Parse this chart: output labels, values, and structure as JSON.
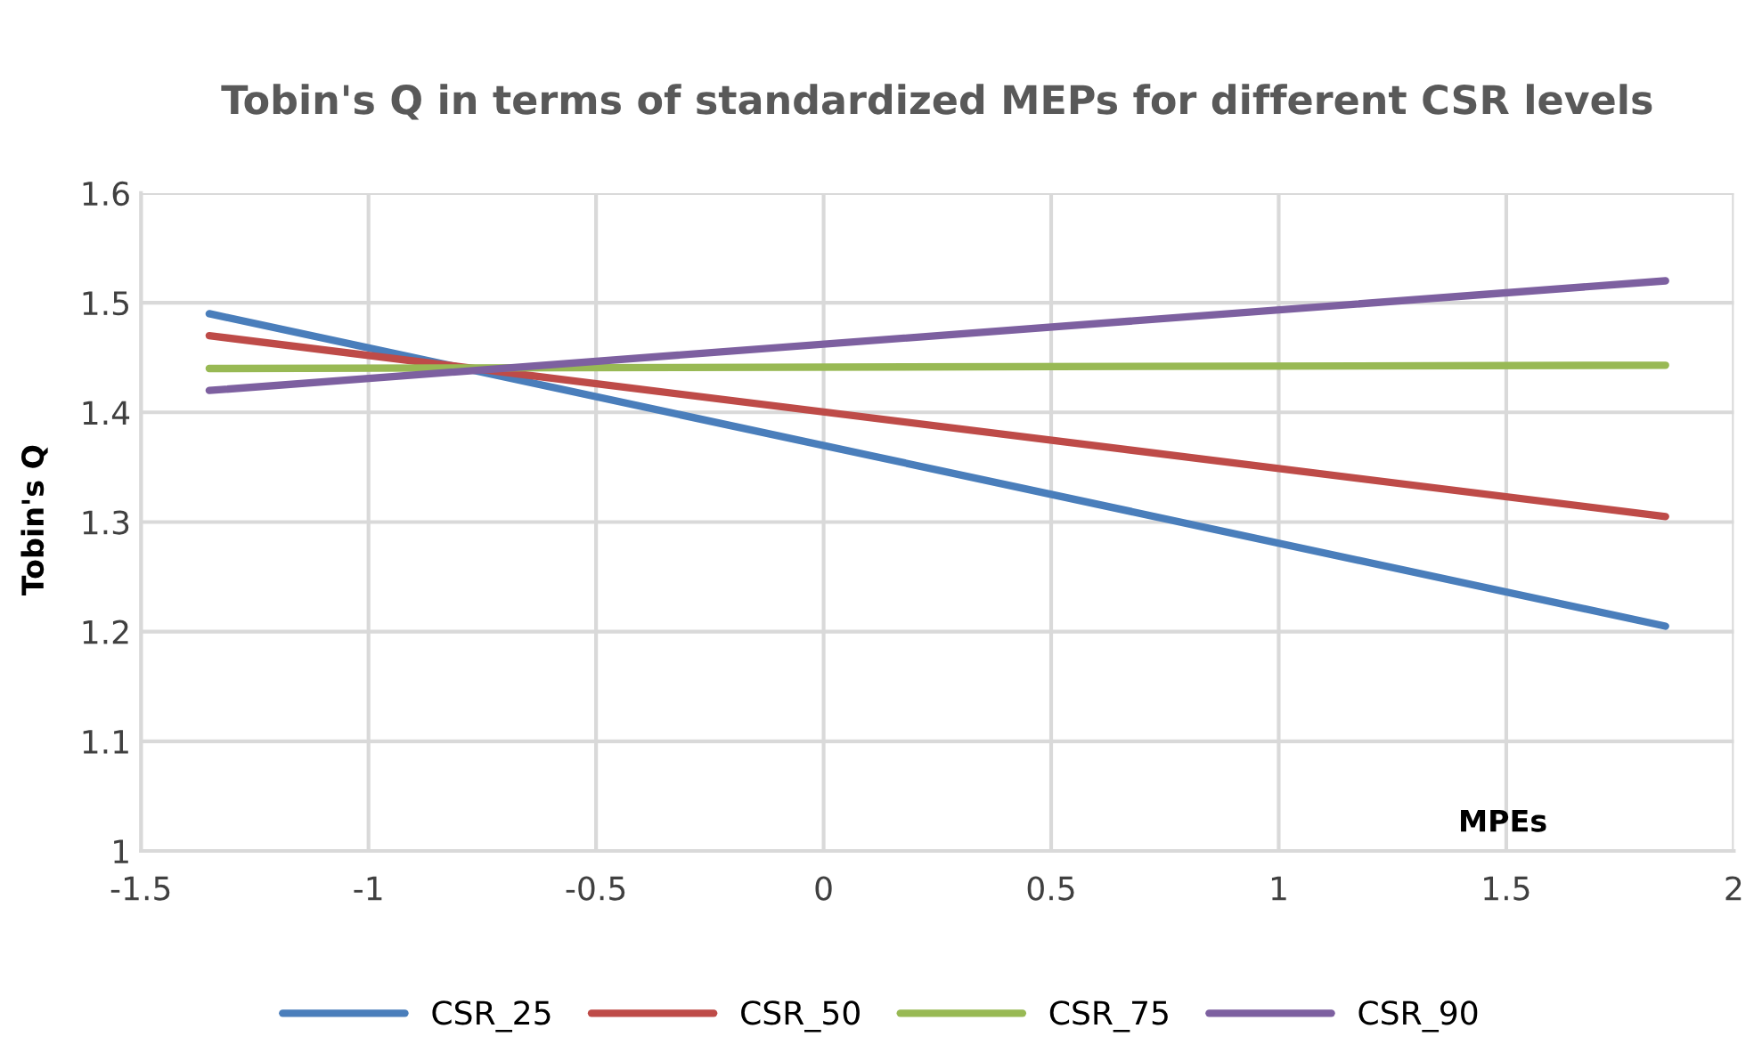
{
  "chart_data": {
    "type": "line",
    "title": "Tobin's Q in terms of standardized MEPs for different CSR levels",
    "xlabel": "MPEs",
    "ylabel": "Tobin's Q",
    "x": [
      -1.35,
      1.85
    ],
    "series": [
      {
        "name": "CSR_25",
        "color": "#4a7ebb",
        "values": [
          1.49,
          1.205
        ]
      },
      {
        "name": "CSR_50",
        "color": "#be4b48",
        "values": [
          1.47,
          1.305
        ]
      },
      {
        "name": "CSR_75",
        "color": "#98b954",
        "values": [
          1.44,
          1.443
        ]
      },
      {
        "name": "CSR_90",
        "color": "#7d60a0",
        "values": [
          1.42,
          1.52
        ]
      }
    ],
    "xlim": [
      -1.5,
      2
    ],
    "xticks": [
      -1.5,
      -1,
      -0.5,
      0,
      0.5,
      1,
      1.5,
      2
    ],
    "ylim": [
      1,
      1.6
    ],
    "yticks": [
      1,
      1.1,
      1.2,
      1.3,
      1.4,
      1.5,
      1.6
    ],
    "grid": true,
    "legend": "bottom",
    "marker": "none",
    "line_style": "solid"
  }
}
